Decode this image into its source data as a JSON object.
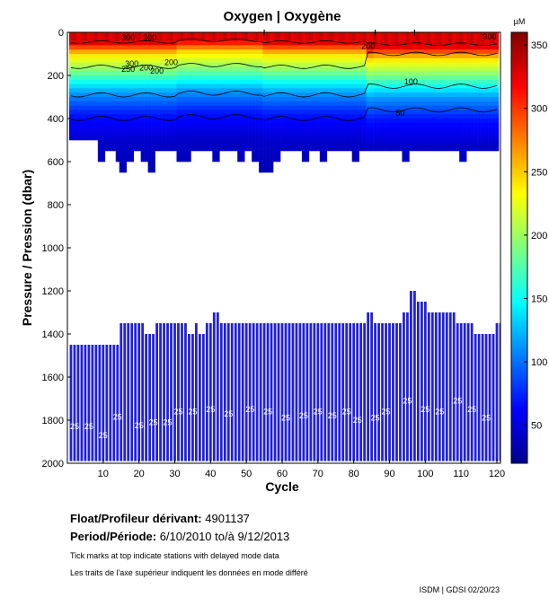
{
  "chart_data": {
    "type": "heatmap",
    "title": "Oxygen | Oxygène",
    "xlabel": "Cycle",
    "ylabel": "Pressure / Pression (dbar)",
    "xlim": [
      0,
      121
    ],
    "ylim": [
      0,
      2000
    ],
    "x_ticks": [
      10,
      20,
      30,
      40,
      50,
      60,
      70,
      80,
      90,
      100,
      110,
      120
    ],
    "y_ticks": [
      0,
      200,
      400,
      600,
      800,
      1000,
      1200,
      1400,
      1600,
      1800,
      2000
    ],
    "colorbar": {
      "unit": "µM",
      "range": [
        20,
        360
      ],
      "ticks": [
        50,
        100,
        150,
        200,
        250,
        300,
        350
      ]
    },
    "contour_labels": [
      {
        "cycle": 17,
        "pressure": 25,
        "text": "300"
      },
      {
        "cycle": 23,
        "pressure": 25,
        "text": "300"
      },
      {
        "cycle": 18,
        "pressure": 145,
        "text": "300"
      },
      {
        "cycle": 17,
        "pressure": 170,
        "text": "250"
      },
      {
        "cycle": 22,
        "pressure": 165,
        "text": "200"
      },
      {
        "cycle": 25,
        "pressure": 180,
        "text": "200"
      },
      {
        "cycle": 29,
        "pressure": 140,
        "text": "200"
      },
      {
        "cycle": 84,
        "pressure": 65,
        "text": "200"
      },
      {
        "cycle": 118,
        "pressure": 20,
        "text": "300"
      },
      {
        "cycle": 96,
        "pressure": 230,
        "text": "100"
      },
      {
        "cycle": 93,
        "pressure": 375,
        "text": "50"
      }
    ],
    "upper_profile_bottom_dbar": [
      500,
      500,
      500,
      500,
      500,
      500,
      500,
      500,
      600,
      600,
      550,
      550,
      550,
      600,
      650,
      650,
      600,
      600,
      550,
      550,
      600,
      600,
      650,
      650,
      550,
      550,
      550,
      550,
      550,
      550,
      600,
      600,
      600,
      600,
      550,
      550,
      550,
      550,
      550,
      550,
      600,
      600,
      550,
      550,
      550,
      550,
      550,
      600,
      600,
      550,
      550,
      600,
      600,
      650,
      650,
      650,
      650,
      600,
      600,
      550,
      550,
      550,
      550,
      550,
      550,
      600,
      600,
      550,
      550,
      550,
      600,
      600,
      550,
      550,
      550,
      550,
      550,
      550,
      550,
      600,
      600,
      550,
      550,
      550,
      550,
      550,
      550,
      550,
      550,
      550,
      550,
      550,
      550,
      600,
      600,
      550,
      550,
      550,
      550,
      550,
      550,
      550,
      550,
      550,
      550,
      550,
      550,
      550,
      550,
      600,
      600,
      550,
      550,
      550,
      550,
      550,
      550,
      550,
      550,
      550
    ],
    "deep_profile_top_dbar": [
      1450,
      1450,
      1450,
      1450,
      1450,
      1450,
      1450,
      1450,
      1450,
      1450,
      1450,
      1450,
      1450,
      1450,
      1350,
      1350,
      1350,
      1350,
      1350,
      1350,
      1350,
      1400,
      1400,
      1400,
      1350,
      1350,
      1350,
      1350,
      1350,
      1350,
      1350,
      1350,
      1350,
      1400,
      1400,
      1350,
      1400,
      1400,
      1350,
      1350,
      1300,
      1300,
      1350,
      1350,
      1350,
      1350,
      1350,
      1350,
      1350,
      1350,
      1350,
      1350,
      1350,
      1350,
      1350,
      1350,
      1350,
      1350,
      1350,
      1350,
      1350,
      1350,
      1350,
      1350,
      1350,
      1350,
      1350,
      1350,
      1350,
      1350,
      1350,
      1350,
      1350,
      1350,
      1350,
      1350,
      1350,
      1350,
      1350,
      1350,
      1350,
      1350,
      1350,
      1300,
      1300,
      1350,
      1350,
      1350,
      1350,
      1350,
      1350,
      1350,
      1350,
      1300,
      1300,
      1200,
      1200,
      1250,
      1250,
      1250,
      1300,
      1300,
      1300,
      1300,
      1300,
      1300,
      1300,
      1300,
      1350,
      1350,
      1350,
      1350,
      1350,
      1400,
      1400,
      1400,
      1400,
      1400,
      1400,
      1350,
      1350
    ],
    "deep_layer_labels": [
      {
        "cycle": 2,
        "pressure": 1830,
        "text": "25"
      },
      {
        "cycle": 6,
        "pressure": 1830,
        "text": "25"
      },
      {
        "cycle": 10,
        "pressure": 1870,
        "text": "25"
      },
      {
        "cycle": 14,
        "pressure": 1785,
        "text": "25"
      },
      {
        "cycle": 20,
        "pressure": 1825,
        "text": "25"
      },
      {
        "cycle": 24,
        "pressure": 1810,
        "text": "25"
      },
      {
        "cycle": 28,
        "pressure": 1810,
        "text": "25"
      },
      {
        "cycle": 31,
        "pressure": 1760,
        "text": "25"
      },
      {
        "cycle": 35,
        "pressure": 1760,
        "text": "25"
      },
      {
        "cycle": 40,
        "pressure": 1750,
        "text": "25"
      },
      {
        "cycle": 45,
        "pressure": 1770,
        "text": "25"
      },
      {
        "cycle": 51,
        "pressure": 1750,
        "text": "25"
      },
      {
        "cycle": 56,
        "pressure": 1760,
        "text": "25"
      },
      {
        "cycle": 61,
        "pressure": 1790,
        "text": "25"
      },
      {
        "cycle": 66,
        "pressure": 1780,
        "text": "25"
      },
      {
        "cycle": 70,
        "pressure": 1760,
        "text": "25"
      },
      {
        "cycle": 74,
        "pressure": 1780,
        "text": "25"
      },
      {
        "cycle": 78,
        "pressure": 1760,
        "text": "25"
      },
      {
        "cycle": 81,
        "pressure": 1800,
        "text": "25"
      },
      {
        "cycle": 86,
        "pressure": 1790,
        "text": "25"
      },
      {
        "cycle": 89,
        "pressure": 1760,
        "text": "25"
      },
      {
        "cycle": 95,
        "pressure": 1710,
        "text": "25"
      },
      {
        "cycle": 100,
        "pressure": 1750,
        "text": "25"
      },
      {
        "cycle": 104,
        "pressure": 1760,
        "text": "25"
      },
      {
        "cycle": 109,
        "pressure": 1710,
        "text": "25"
      },
      {
        "cycle": 113,
        "pressure": 1750,
        "text": "25"
      },
      {
        "cycle": 117,
        "pressure": 1790,
        "text": "25"
      }
    ],
    "delayed_mode_ticks": [
      55,
      86,
      97
    ]
  },
  "info": {
    "float_label": "Float/Profileur dérivant:",
    "float_value": "4901137",
    "period_label": "Period/Période:",
    "period_value": "6/10/2010  to/à  9/12/2013",
    "note_en": "Tick marks at top indicate stations with delayed mode data",
    "note_fr": "Les traits de l'axe supérieur indiquent les données en mode différé",
    "credit": "ISDM | GDSI  02/20/23"
  }
}
